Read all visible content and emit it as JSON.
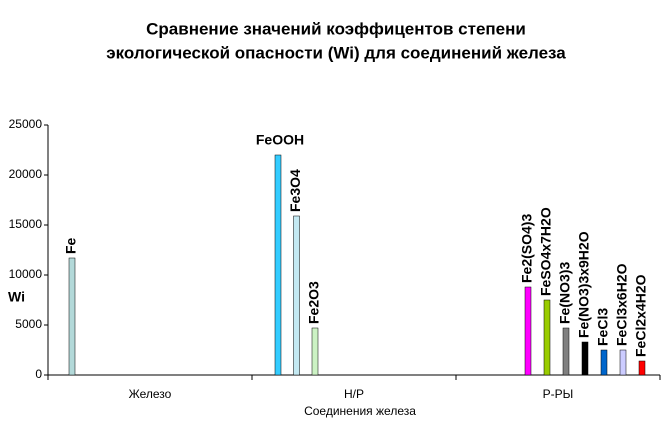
{
  "chart_data": {
    "type": "bar",
    "title": [
      "Сравнение значений коэффицентов степени",
      "экологической опасности (Wi) для соединений железа"
    ],
    "x_label": "Соединения железа",
    "y_label": "Wi",
    "categories": [
      "Железо",
      "Н/Р",
      "Р-РЫ"
    ],
    "ylim": [
      0,
      25000
    ],
    "yticks": [
      0,
      5000,
      10000,
      15000,
      20000,
      25000
    ],
    "grid": false,
    "series": [
      {
        "name": "Fe",
        "color": "#b3d9d9",
        "values": [
          11700,
          null,
          null
        ]
      },
      {
        "name": "FeOOH",
        "color": "#33ccff",
        "values": [
          null,
          22000,
          null
        ]
      },
      {
        "name": "Fe3O4",
        "color": "#c4e9f2",
        "values": [
          null,
          15900,
          null
        ]
      },
      {
        "name": "Fe2O3",
        "color": "#ccf2c4",
        "values": [
          null,
          4700,
          null
        ]
      },
      {
        "name": "Fe2(SO4)3",
        "color": "#ff00ff",
        "values": [
          null,
          null,
          8800
        ]
      },
      {
        "name": "FeSO4x7H2O",
        "color": "#99cc00",
        "values": [
          null,
          null,
          7500
        ]
      },
      {
        "name": "Fe(NO3)3",
        "color": "#808080",
        "values": [
          null,
          null,
          4700
        ]
      },
      {
        "name": "Fe(NO3)3x9H2O",
        "color": "#000000",
        "values": [
          null,
          null,
          3300
        ]
      },
      {
        "name": "FeCl3",
        "color": "#0066cc",
        "values": [
          null,
          null,
          2500
        ]
      },
      {
        "name": "FeCl3x6H2O",
        "color": "#ccccff",
        "values": [
          null,
          null,
          2500
        ]
      },
      {
        "name": "FeCl2x4H2O",
        "color": "#ff0000",
        "values": [
          null,
          null,
          1400
        ]
      }
    ]
  }
}
